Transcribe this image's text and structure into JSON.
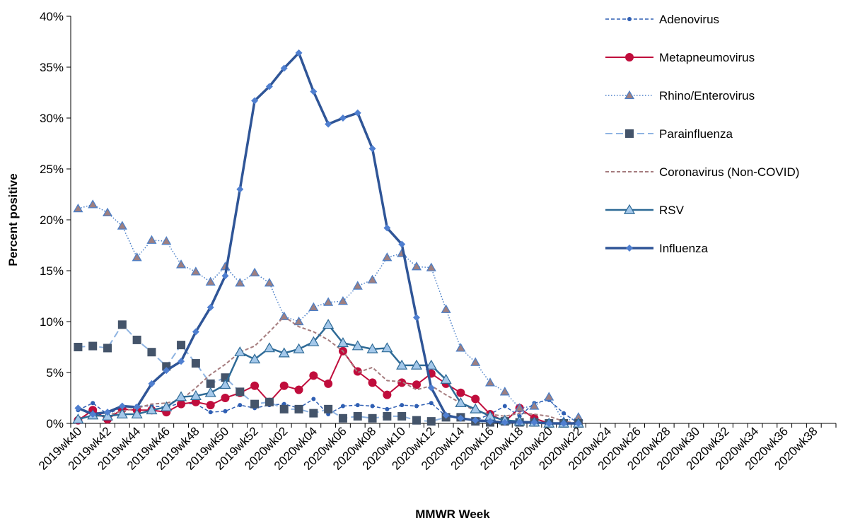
{
  "chart_data": {
    "type": "line",
    "x_label": "MMWR Week",
    "y_label": "Percent positive",
    "categories": [
      "2019wk40",
      null,
      "2019wk42",
      null,
      "2019wk44",
      null,
      "2019wk46",
      null,
      "2019wk48",
      null,
      "2019wk50",
      null,
      "2019wk52",
      null,
      "2020wk02",
      null,
      "2020wk04",
      null,
      "2020wk06",
      null,
      "2020wk08",
      null,
      "2020wk10",
      null,
      "2020wk12",
      null,
      "2020wk14",
      null,
      "2020wk16",
      null,
      "2020wk18",
      null,
      "2020wk20",
      null,
      "2020wk22",
      null,
      "2020wk24",
      null,
      "2020wk26",
      null,
      "2020wk28",
      null,
      "2020wk30",
      null,
      "2020wk32",
      null,
      "2020wk34",
      null,
      "2020wk36",
      null,
      "2020wk38",
      null
    ],
    "ylim": [
      0,
      40
    ],
    "yticks": [
      {
        "value": 0,
        "label": "0%"
      },
      {
        "value": 5,
        "label": "5%"
      },
      {
        "value": 10,
        "label": "10%"
      },
      {
        "value": 15,
        "label": "15%"
      },
      {
        "value": 20,
        "label": "20%"
      },
      {
        "value": 25,
        "label": "25%"
      },
      {
        "value": 30,
        "label": "30%"
      },
      {
        "value": 35,
        "label": "35%"
      },
      {
        "value": 40,
        "label": "40%"
      }
    ],
    "grid": false,
    "legend": "right",
    "series": [
      {
        "name": "Adenovirus",
        "color": "#2f5fb3",
        "marker": "circle",
        "marker_color": "#2f5fb3",
        "marker_size": 3,
        "dash": "5,3",
        "width": 1.5,
        "values": [
          1.3,
          2.0,
          0.9,
          1.6,
          1.7,
          1.7,
          1.6,
          2.0,
          1.9,
          1.1,
          1.2,
          1.8,
          1.5,
          1.8,
          1.9,
          1.5,
          2.4,
          0.9,
          1.7,
          1.8,
          1.7,
          1.4,
          1.8,
          1.7,
          2.0,
          0.7,
          0.6,
          0.3,
          0.9,
          1.7,
          0.7,
          2.0,
          2.3,
          1.0,
          0,
          null,
          null,
          null,
          null,
          null,
          null,
          null,
          null,
          null,
          null,
          null,
          null,
          null,
          null,
          null,
          null,
          null
        ]
      },
      {
        "name": "Metapneumovirus",
        "color": "#c00d3c",
        "marker": "circle",
        "marker_color": "#c00d3c",
        "marker_size": 6,
        "dash": "",
        "width": 2,
        "values": [
          0.3,
          1.3,
          0.4,
          1.4,
          1.3,
          1.3,
          1.1,
          1.9,
          2.1,
          1.8,
          2.5,
          3.0,
          3.7,
          2.1,
          3.7,
          3.3,
          4.7,
          3.9,
          7.1,
          5.1,
          4.0,
          2.8,
          4.0,
          3.8,
          4.9,
          3.9,
          3.0,
          2.4,
          0.9,
          0.2,
          1.5,
          0.5,
          0,
          0,
          0,
          null,
          null,
          null,
          null,
          null,
          null,
          null,
          null,
          null,
          null,
          null,
          null,
          null,
          null,
          null,
          null,
          null
        ]
      },
      {
        "name": "Rhino/Enterovirus",
        "color": "#4a7fc8",
        "marker": "triangle",
        "marker_color": "#9e7f80",
        "marker_size": 6,
        "dash": "1.5,2.5",
        "width": 1.5,
        "values": [
          21.1,
          21.5,
          20.7,
          19.4,
          16.3,
          18.0,
          17.9,
          15.6,
          14.9,
          13.9,
          15.4,
          13.8,
          14.8,
          13.8,
          10.5,
          10.0,
          11.4,
          11.9,
          12.0,
          13.5,
          14.1,
          16.3,
          16.7,
          15.4,
          15.3,
          11.2,
          7.4,
          6.0,
          4.0,
          3.1,
          1.5,
          1.7,
          2.6,
          0.2,
          0.6,
          null,
          null,
          null,
          null,
          null,
          null,
          null,
          null,
          null,
          null,
          null,
          null,
          null,
          null,
          null,
          null,
          null
        ]
      },
      {
        "name": "Parainfluenza",
        "color": "#8fb4e2",
        "marker": "square",
        "marker_color": "#44546a",
        "marker_size": 6,
        "dash": "10,5",
        "width": 2,
        "values": [
          7.5,
          7.6,
          7.4,
          9.7,
          8.2,
          7.0,
          5.6,
          7.7,
          5.9,
          3.9,
          4.5,
          3.1,
          1.9,
          2.1,
          1.4,
          1.4,
          1.0,
          1.4,
          0.5,
          0.7,
          0.5,
          0.7,
          0.7,
          0.3,
          0.2,
          0.6,
          0.6,
          0.2,
          0.1,
          0.2,
          0.1,
          0.1,
          0,
          0,
          0,
          null,
          null,
          null,
          null,
          null,
          null,
          null,
          null,
          null,
          null,
          null,
          null,
          null,
          null,
          null,
          null,
          null
        ]
      },
      {
        "name": "Coronavirus (Non-COVID)",
        "color": "#a57c7e",
        "marker": "none",
        "marker_color": "#a57c7e",
        "marker_size": 0,
        "dash": "5,3",
        "width": 2,
        "values": [
          0.5,
          0.7,
          0.8,
          1.2,
          1.5,
          1.9,
          2.0,
          2.3,
          3.5,
          4.8,
          5.8,
          7.0,
          7.6,
          9.0,
          10.5,
          9.5,
          9.0,
          8.2,
          7.1,
          5.0,
          5.5,
          4.2,
          4.1,
          3.3,
          3.7,
          2.8,
          2.0,
          1.2,
          0.9,
          0.7,
          1.0,
          0.9,
          0.7,
          0.2,
          0,
          null,
          null,
          null,
          null,
          null,
          null,
          null,
          null,
          null,
          null,
          null,
          null,
          null,
          null,
          null,
          null,
          null
        ]
      },
      {
        "name": "RSV",
        "color": "#2e6a96",
        "marker": "triangle",
        "marker_color": "#a4c8ea",
        "marker_size": 7,
        "dash": "",
        "width": 2.5,
        "values": [
          0.4,
          0.8,
          0.7,
          0.9,
          0.9,
          1.3,
          1.6,
          2.6,
          2.7,
          3.0,
          3.8,
          7.0,
          6.3,
          7.4,
          6.9,
          7.3,
          8.0,
          9.7,
          7.9,
          7.6,
          7.3,
          7.4,
          5.7,
          5.7,
          5.7,
          4.3,
          2.0,
          1.4,
          0.7,
          0.3,
          0.2,
          0.1,
          0,
          0,
          0,
          null,
          null,
          null,
          null,
          null,
          null,
          null,
          null,
          null,
          null,
          null,
          null,
          null,
          null,
          null,
          null,
          null
        ]
      },
      {
        "name": "Influenza",
        "color": "#2f5597",
        "marker": "diamond",
        "marker_color": "#4f7fd0",
        "marker_size": 5,
        "dash": "",
        "width": 3.5,
        "values": [
          1.5,
          0.9,
          1.1,
          1.7,
          1.6,
          3.9,
          5.2,
          6.1,
          9.0,
          11.4,
          14.5,
          23.0,
          31.7,
          33.1,
          34.9,
          36.4,
          32.6,
          29.4,
          30.0,
          30.5,
          27.0,
          19.2,
          17.6,
          10.4,
          3.5,
          0.8,
          0.5,
          0.3,
          0.2,
          0.1,
          0.1,
          0.1,
          0,
          0,
          0,
          null,
          null,
          null,
          null,
          null,
          null,
          null,
          null,
          null,
          null,
          null,
          null,
          null,
          null,
          null,
          null,
          null
        ]
      }
    ]
  }
}
